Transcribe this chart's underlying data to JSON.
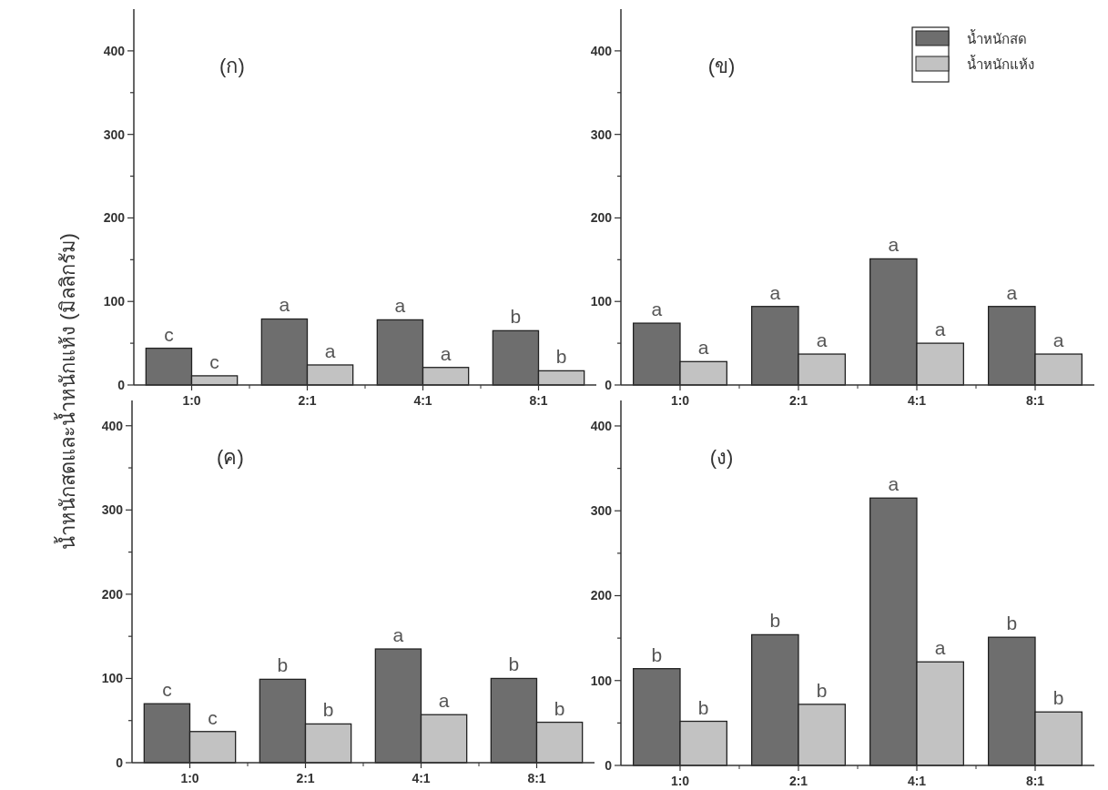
{
  "chart_data": [
    {
      "type": "bar",
      "title": "(ก)",
      "ylabel": "น้ำหนักสดและน้ำหนักแห้ง (มิลลิกรัม)",
      "categories": [
        "1:0",
        "2:1",
        "4:1",
        "8:1"
      ],
      "ylim": [
        0,
        450
      ],
      "yticks": [
        0,
        {
          "value": 50,
          "label": null
        },
        100,
        {
          "value": 150,
          "label": null
        },
        200,
        {
          "value": 250,
          "label": null
        },
        300,
        {
          "value": 350,
          "label": null
        },
        400
      ],
      "grid": false,
      "series": [
        {
          "color": "#6e6e6e",
          "values": [
            44,
            79,
            78,
            65
          ],
          "value_labels": [
            "c",
            "a",
            "a",
            "b"
          ]
        },
        {
          "color": "#c2c2c2",
          "values": [
            11,
            24,
            21,
            17
          ],
          "value_labels": [
            "c",
            "a",
            "a",
            "b"
          ]
        }
      ]
    },
    {
      "type": "bar",
      "title": "(ข)",
      "categories": [
        "1:0",
        "2:1",
        "4:1",
        "8:1"
      ],
      "ylim": [
        0,
        450
      ],
      "yticks": [
        0,
        {
          "value": 50,
          "label": null
        },
        100,
        {
          "value": 150,
          "label": null
        },
        200,
        {
          "value": 250,
          "label": null
        },
        300,
        {
          "value": 350,
          "label": null
        },
        400
      ],
      "grid": false,
      "legend": "top right",
      "series": [
        {
          "name": "น้ำหนักสด",
          "color": "#6e6e6e",
          "values": [
            74,
            94,
            151,
            94
          ],
          "value_labels": [
            "a",
            "a",
            "a",
            "a"
          ]
        },
        {
          "name": "น้ำหนักแห้ง",
          "color": "#c2c2c2",
          "values": [
            28,
            37,
            50,
            37
          ],
          "value_labels": [
            "a",
            "a",
            "a",
            "a"
          ]
        }
      ]
    },
    {
      "type": "bar",
      "title": "(ค)",
      "categories": [
        "1:0",
        "2:1",
        "4:1",
        "8:1"
      ],
      "ylim": [
        0,
        430
      ],
      "yticks": [
        0,
        {
          "value": 50,
          "label": null
        },
        100,
        {
          "value": 150,
          "label": null
        },
        200,
        {
          "value": 250,
          "label": null
        },
        300,
        {
          "value": 350,
          "label": null
        },
        400
      ],
      "grid": false,
      "series": [
        {
          "color": "#6e6e6e",
          "values": [
            70,
            99,
            135,
            100
          ],
          "value_labels": [
            "c",
            "b",
            "a",
            "b"
          ]
        },
        {
          "color": "#c2c2c2",
          "values": [
            37,
            46,
            57,
            48
          ],
          "value_labels": [
            "c",
            "b",
            "a",
            "b"
          ]
        }
      ]
    },
    {
      "type": "bar",
      "title": "(ง)",
      "categories": [
        "1:0",
        "2:1",
        "4:1",
        "8:1"
      ],
      "ylim": [
        0,
        430
      ],
      "yticks": [
        0,
        {
          "value": 50,
          "label": null
        },
        100,
        {
          "value": 150,
          "label": null
        },
        200,
        {
          "value": 250,
          "label": null
        },
        300,
        {
          "value": 350,
          "label": null
        },
        400
      ],
      "grid": false,
      "series": [
        {
          "color": "#6e6e6e",
          "values": [
            114,
            154,
            315,
            151
          ],
          "value_labels": [
            "b",
            "b",
            "a",
            "b"
          ]
        },
        {
          "color": "#c2c2c2",
          "values": [
            52,
            72,
            122,
            63
          ],
          "value_labels": [
            "b",
            "b",
            "a",
            "b"
          ]
        }
      ]
    }
  ]
}
